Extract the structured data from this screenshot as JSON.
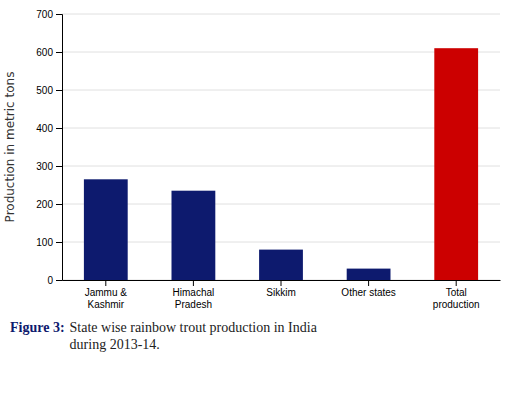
{
  "chart_data": {
    "type": "bar",
    "categories": [
      "Jammu &\nKashmir",
      "Himachal\nPradesh",
      "Sikkim",
      "Other states",
      "Total\nproduction"
    ],
    "values": [
      265,
      235,
      80,
      30,
      610
    ],
    "colors": [
      "#0d1a6e",
      "#0d1a6e",
      "#0d1a6e",
      "#0d1a6e",
      "#cc0000"
    ],
    "y_label": "Production in metric tons",
    "ylim": [
      0,
      700
    ],
    "yticks": [
      0,
      100,
      200,
      300,
      400,
      500,
      600,
      700
    ],
    "grid": true,
    "annotations": [
      "Figure 3:",
      "State wise rainbow trout production in India\nduring 2013-14."
    ]
  }
}
